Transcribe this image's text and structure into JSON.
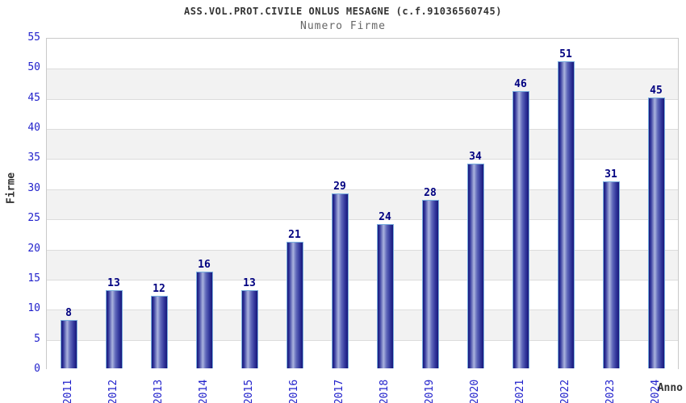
{
  "header": {
    "title": "ASS.VOL.PROT.CIVILE ONLUS MESAGNE (c.f.91036560745)",
    "subtitle": "Numero Firme"
  },
  "chart_data": {
    "type": "bar",
    "title": "ASS.VOL.PROT.CIVILE ONLUS MESAGNE (c.f.91036560745)",
    "subtitle": "Numero Firme",
    "xlabel": "Anno",
    "ylabel": "Firme",
    "categories": [
      "2011",
      "2012",
      "2013",
      "2014",
      "2015",
      "2016",
      "2017",
      "2018",
      "2019",
      "2020",
      "2021",
      "2022",
      "2023",
      "2024"
    ],
    "values": [
      8,
      13,
      12,
      16,
      13,
      21,
      29,
      24,
      28,
      34,
      46,
      51,
      31,
      45
    ],
    "ylim": [
      0,
      55
    ],
    "ytick_step": 5,
    "grid": true,
    "legend": "none",
    "band_colors": [
      "#ffffff",
      "#f2f2f2"
    ],
    "colors": {
      "bar_edge_dark": "#18187a",
      "bar_mid_dark": "#30359a",
      "bar_highlight": "#aab3de",
      "bar_shadow": "#5f68ba",
      "bar_border": "#79aede",
      "tick_label": "#2222cc",
      "value_label": "#000080",
      "gridline": "#dcdcdc",
      "plot_border": "#c9c9c9",
      "title": "#333333",
      "subtitle": "#666666"
    }
  }
}
